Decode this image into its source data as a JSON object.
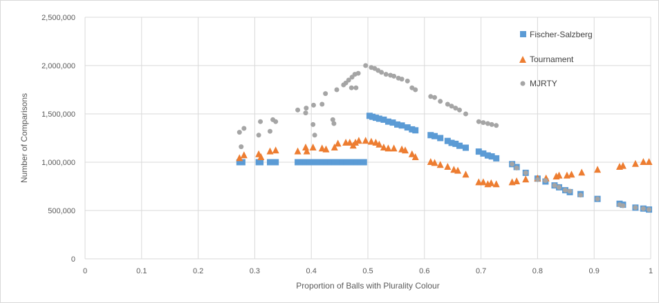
{
  "chart_data": {
    "type": "scatter",
    "title": "",
    "xlabel": "Proportion of Balls with Plurality Colour",
    "ylabel": "Number of Comparisons",
    "xlim": [
      0,
      1
    ],
    "ylim": [
      0,
      2500000
    ],
    "x_ticks": [
      {
        "value": 0,
        "label": "0"
      },
      {
        "value": 0.1,
        "label": "0.1"
      },
      {
        "value": 0.2,
        "label": "0.2"
      },
      {
        "value": 0.3,
        "label": "0.3"
      },
      {
        "value": 0.4,
        "label": "0.4"
      },
      {
        "value": 0.5,
        "label": "0.5"
      },
      {
        "value": 0.6,
        "label": "0.6"
      },
      {
        "value": 0.7,
        "label": "0.7"
      },
      {
        "value": 0.8,
        "label": "0.8"
      },
      {
        "value": 0.9,
        "label": "0.9"
      },
      {
        "value": 1,
        "label": "1"
      }
    ],
    "y_ticks": [
      {
        "value": 0,
        "label": "0"
      },
      {
        "value": 500000,
        "label": "500,000"
      },
      {
        "value": 1000000,
        "label": "1,000,000"
      },
      {
        "value": 1500000,
        "label": "1,500,000"
      },
      {
        "value": 2000000,
        "label": "2,000,000"
      },
      {
        "value": 2500000,
        "label": "2,500,000"
      }
    ],
    "grid": true,
    "legend_position": "top-right",
    "series": [
      {
        "name": "Fischer-Salzberg",
        "marker": "square",
        "color": "#5b9bd5",
        "points": [
          [
            0.273,
            1000000
          ],
          [
            0.278,
            1000000
          ],
          [
            0.307,
            1000000
          ],
          [
            0.31,
            1000000
          ],
          [
            0.327,
            1000000
          ],
          [
            0.333,
            1000000
          ],
          [
            0.337,
            1000000
          ],
          [
            0.376,
            1000000
          ],
          [
            0.383,
            1000000
          ],
          [
            0.39,
            1000000
          ],
          [
            0.397,
            1000000
          ],
          [
            0.404,
            1000000
          ],
          [
            0.412,
            1000000
          ],
          [
            0.42,
            1000000
          ],
          [
            0.427,
            1000000
          ],
          [
            0.434,
            1000000
          ],
          [
            0.441,
            1000000
          ],
          [
            0.448,
            1000000
          ],
          [
            0.455,
            1000000
          ],
          [
            0.462,
            1000000
          ],
          [
            0.468,
            1000000
          ],
          [
            0.474,
            1000000
          ],
          [
            0.48,
            1000000
          ],
          [
            0.486,
            1000000
          ],
          [
            0.493,
            1000000
          ],
          [
            0.503,
            1480000
          ],
          [
            0.508,
            1470000
          ],
          [
            0.514,
            1460000
          ],
          [
            0.52,
            1450000
          ],
          [
            0.528,
            1440000
          ],
          [
            0.536,
            1420000
          ],
          [
            0.544,
            1410000
          ],
          [
            0.552,
            1390000
          ],
          [
            0.56,
            1380000
          ],
          [
            0.57,
            1360000
          ],
          [
            0.578,
            1340000
          ],
          [
            0.584,
            1330000
          ],
          [
            0.611,
            1280000
          ],
          [
            0.618,
            1270000
          ],
          [
            0.628,
            1250000
          ],
          [
            0.641,
            1220000
          ],
          [
            0.648,
            1200000
          ],
          [
            0.655,
            1190000
          ],
          [
            0.662,
            1170000
          ],
          [
            0.673,
            1150000
          ],
          [
            0.696,
            1110000
          ],
          [
            0.704,
            1090000
          ],
          [
            0.712,
            1070000
          ],
          [
            0.719,
            1060000
          ],
          [
            0.727,
            1040000
          ],
          [
            0.755,
            980000
          ],
          [
            0.763,
            950000
          ],
          [
            0.779,
            890000
          ],
          [
            0.8,
            830000
          ],
          [
            0.814,
            800000
          ],
          [
            0.83,
            760000
          ],
          [
            0.838,
            740000
          ],
          [
            0.849,
            710000
          ],
          [
            0.857,
            690000
          ],
          [
            0.876,
            670000
          ],
          [
            0.906,
            620000
          ],
          [
            0.945,
            570000
          ],
          [
            0.951,
            560000
          ],
          [
            0.973,
            530000
          ],
          [
            0.987,
            520000
          ],
          [
            0.997,
            510000
          ]
        ]
      },
      {
        "name": "Tournament",
        "marker": "triangle",
        "color": "#ed7d31",
        "points": [
          [
            0.273,
            1040000
          ],
          [
            0.281,
            1070000
          ],
          [
            0.307,
            1080000
          ],
          [
            0.311,
            1050000
          ],
          [
            0.327,
            1110000
          ],
          [
            0.337,
            1120000
          ],
          [
            0.376,
            1110000
          ],
          [
            0.39,
            1150000
          ],
          [
            0.392,
            1110000
          ],
          [
            0.403,
            1150000
          ],
          [
            0.419,
            1140000
          ],
          [
            0.426,
            1130000
          ],
          [
            0.441,
            1150000
          ],
          [
            0.447,
            1190000
          ],
          [
            0.461,
            1200000
          ],
          [
            0.468,
            1200000
          ],
          [
            0.474,
            1170000
          ],
          [
            0.478,
            1200000
          ],
          [
            0.484,
            1220000
          ],
          [
            0.496,
            1220000
          ],
          [
            0.506,
            1210000
          ],
          [
            0.514,
            1200000
          ],
          [
            0.52,
            1180000
          ],
          [
            0.528,
            1150000
          ],
          [
            0.536,
            1140000
          ],
          [
            0.546,
            1140000
          ],
          [
            0.56,
            1130000
          ],
          [
            0.566,
            1120000
          ],
          [
            0.578,
            1080000
          ],
          [
            0.584,
            1050000
          ],
          [
            0.611,
            1000000
          ],
          [
            0.618,
            990000
          ],
          [
            0.628,
            970000
          ],
          [
            0.641,
            950000
          ],
          [
            0.652,
            920000
          ],
          [
            0.659,
            910000
          ],
          [
            0.673,
            870000
          ],
          [
            0.696,
            790000
          ],
          [
            0.704,
            790000
          ],
          [
            0.712,
            770000
          ],
          [
            0.718,
            780000
          ],
          [
            0.727,
            770000
          ],
          [
            0.755,
            790000
          ],
          [
            0.763,
            800000
          ],
          [
            0.779,
            820000
          ],
          [
            0.8,
            830000
          ],
          [
            0.815,
            830000
          ],
          [
            0.833,
            850000
          ],
          [
            0.838,
            860000
          ],
          [
            0.852,
            860000
          ],
          [
            0.86,
            870000
          ],
          [
            0.878,
            890000
          ],
          [
            0.906,
            920000
          ],
          [
            0.945,
            950000
          ],
          [
            0.951,
            960000
          ],
          [
            0.973,
            980000
          ],
          [
            0.987,
            1000000
          ],
          [
            0.997,
            1000000
          ]
        ]
      },
      {
        "name": "MJRTY",
        "marker": "circle",
        "color": "#a5a5a5",
        "points": [
          [
            0.273,
            1310000
          ],
          [
            0.276,
            1160000
          ],
          [
            0.281,
            1350000
          ],
          [
            0.307,
            1280000
          ],
          [
            0.31,
            1420000
          ],
          [
            0.327,
            1320000
          ],
          [
            0.332,
            1440000
          ],
          [
            0.337,
            1420000
          ],
          [
            0.376,
            1540000
          ],
          [
            0.39,
            1510000
          ],
          [
            0.391,
            1560000
          ],
          [
            0.403,
            1390000
          ],
          [
            0.404,
            1590000
          ],
          [
            0.406,
            1280000
          ],
          [
            0.419,
            1600000
          ],
          [
            0.425,
            1710000
          ],
          [
            0.438,
            1440000
          ],
          [
            0.44,
            1400000
          ],
          [
            0.445,
            1750000
          ],
          [
            0.457,
            1800000
          ],
          [
            0.461,
            1820000
          ],
          [
            0.466,
            1850000
          ],
          [
            0.471,
            1770000
          ],
          [
            0.472,
            1880000
          ],
          [
            0.477,
            1910000
          ],
          [
            0.479,
            1770000
          ],
          [
            0.483,
            1920000
          ],
          [
            0.496,
            2000000
          ],
          [
            0.506,
            1980000
          ],
          [
            0.512,
            1970000
          ],
          [
            0.518,
            1950000
          ],
          [
            0.524,
            1930000
          ],
          [
            0.532,
            1910000
          ],
          [
            0.54,
            1900000
          ],
          [
            0.546,
            1890000
          ],
          [
            0.554,
            1870000
          ],
          [
            0.56,
            1860000
          ],
          [
            0.57,
            1840000
          ],
          [
            0.578,
            1770000
          ],
          [
            0.584,
            1750000
          ],
          [
            0.611,
            1680000
          ],
          [
            0.618,
            1670000
          ],
          [
            0.628,
            1630000
          ],
          [
            0.641,
            1600000
          ],
          [
            0.648,
            1580000
          ],
          [
            0.655,
            1560000
          ],
          [
            0.662,
            1540000
          ],
          [
            0.673,
            1500000
          ],
          [
            0.696,
            1420000
          ],
          [
            0.704,
            1410000
          ],
          [
            0.712,
            1400000
          ],
          [
            0.719,
            1390000
          ],
          [
            0.727,
            1380000
          ],
          [
            0.755,
            980000
          ],
          [
            0.763,
            940000
          ],
          [
            0.779,
            890000
          ],
          [
            0.8,
            820000
          ],
          [
            0.814,
            810000
          ],
          [
            0.83,
            760000
          ],
          [
            0.838,
            740000
          ],
          [
            0.849,
            710000
          ],
          [
            0.857,
            700000
          ],
          [
            0.876,
            660000
          ],
          [
            0.906,
            620000
          ],
          [
            0.945,
            560000
          ],
          [
            0.951,
            550000
          ],
          [
            0.973,
            530000
          ],
          [
            0.987,
            520000
          ],
          [
            0.997,
            510000
          ]
        ]
      }
    ]
  }
}
